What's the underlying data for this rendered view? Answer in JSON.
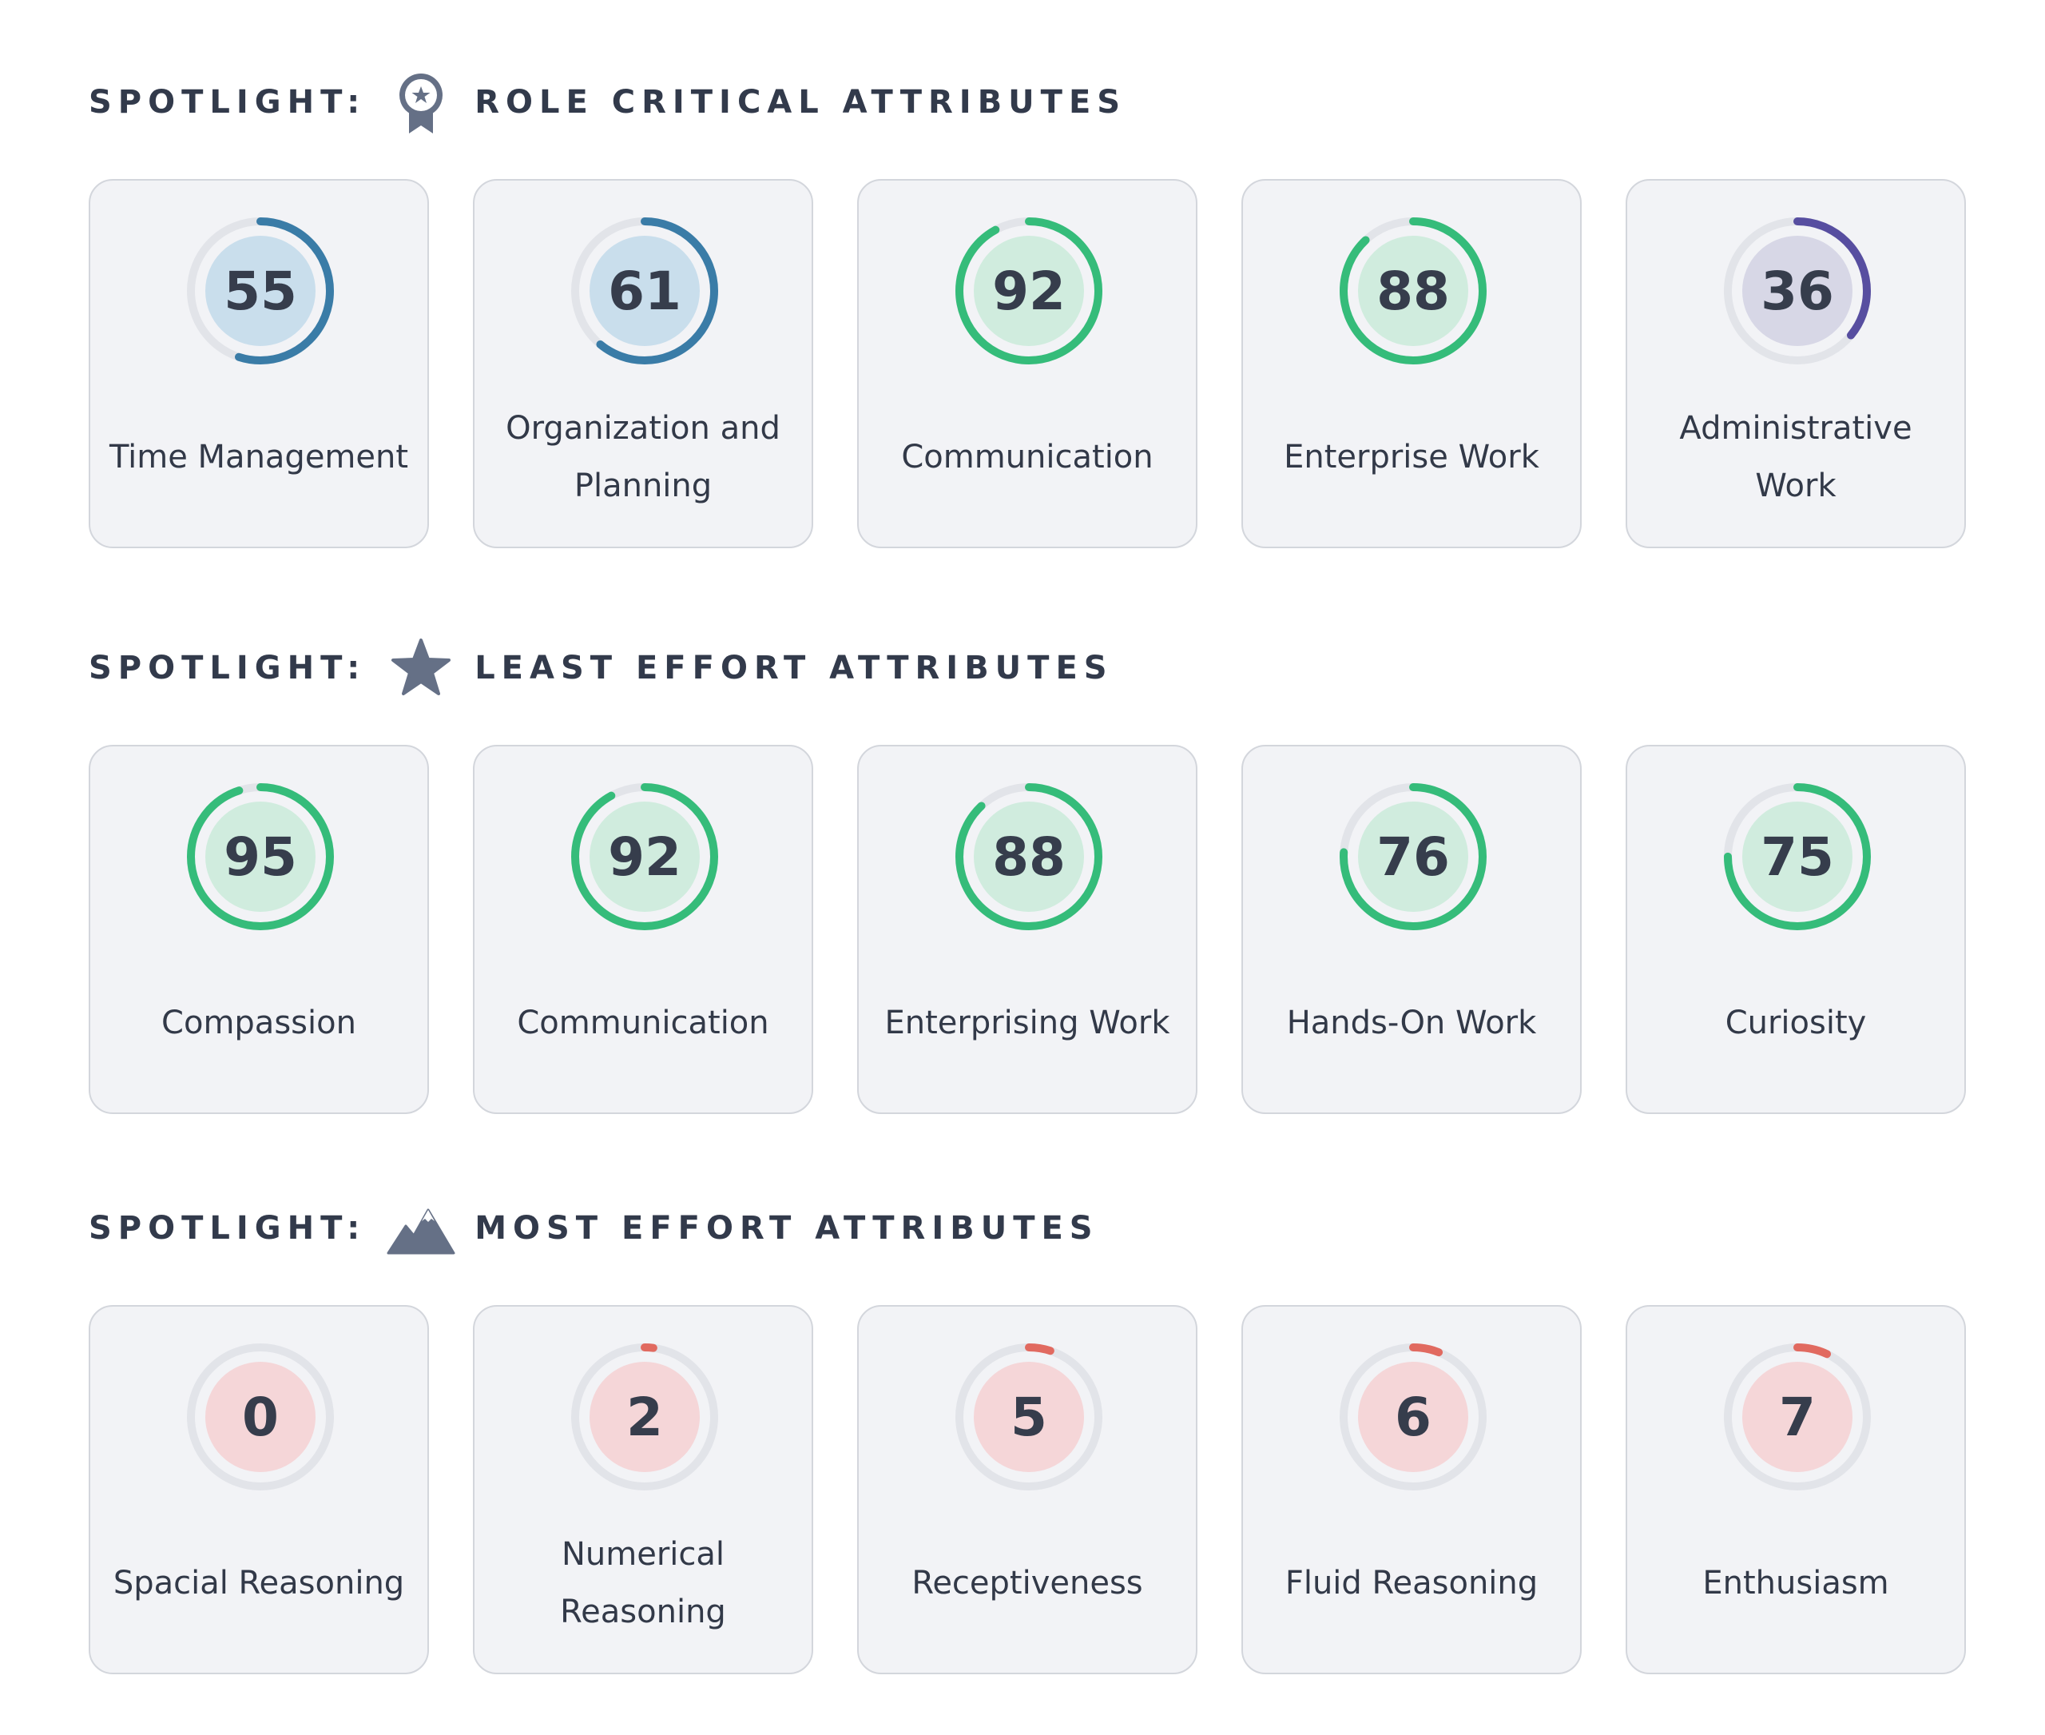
{
  "colors": {
    "track": "#e2e4e9",
    "blue": "#3a7ca7",
    "blue_fill": "#c9deec",
    "green": "#35bc7a",
    "green_fill": "#d0ecde",
    "purple": "#574ea0",
    "purple_fill": "#d7d7e6",
    "red": "#e16a60",
    "red_fill": "#f5d6d8"
  },
  "sections": [
    {
      "prefix": "SPOTLIGHT:",
      "title": "ROLE CRITICAL ATTRIBUTES",
      "icon": "award-ribbon-icon",
      "cards": [
        {
          "score": "55",
          "label": "Time Management",
          "color": "blue"
        },
        {
          "score": "61",
          "label": "Organization and Planning",
          "color": "blue"
        },
        {
          "score": "92",
          "label": "Communication",
          "color": "green"
        },
        {
          "score": "88",
          "label": "Enterprise Work",
          "color": "green"
        },
        {
          "score": "36",
          "label": "Administrative Work",
          "color": "purple"
        }
      ]
    },
    {
      "prefix": "SPOTLIGHT:",
      "title": "LEAST EFFORT ATTRIBUTES",
      "icon": "star-icon",
      "cards": [
        {
          "score": "95",
          "label": "Compassion",
          "color": "green"
        },
        {
          "score": "92",
          "label": "Communication",
          "color": "green"
        },
        {
          "score": "88",
          "label": "Enterprising Work",
          "color": "green"
        },
        {
          "score": "76",
          "label": "Hands-On Work",
          "color": "green"
        },
        {
          "score": "75",
          "label": "Curiosity",
          "color": "green"
        }
      ]
    },
    {
      "prefix": "SPOTLIGHT:",
      "title": "MOST EFFORT ATTRIBUTES",
      "icon": "mountain-icon",
      "cards": [
        {
          "score": "0",
          "label": "Spacial Reasoning",
          "color": "red"
        },
        {
          "score": "2",
          "label": "Numerical Reasoning",
          "color": "red"
        },
        {
          "score": "5",
          "label": "Receptiveness",
          "color": "red"
        },
        {
          "score": "6",
          "label": "Fluid Reasoning",
          "color": "red"
        },
        {
          "score": "7",
          "label": "Enthusiasm",
          "color": "red"
        }
      ]
    }
  ]
}
